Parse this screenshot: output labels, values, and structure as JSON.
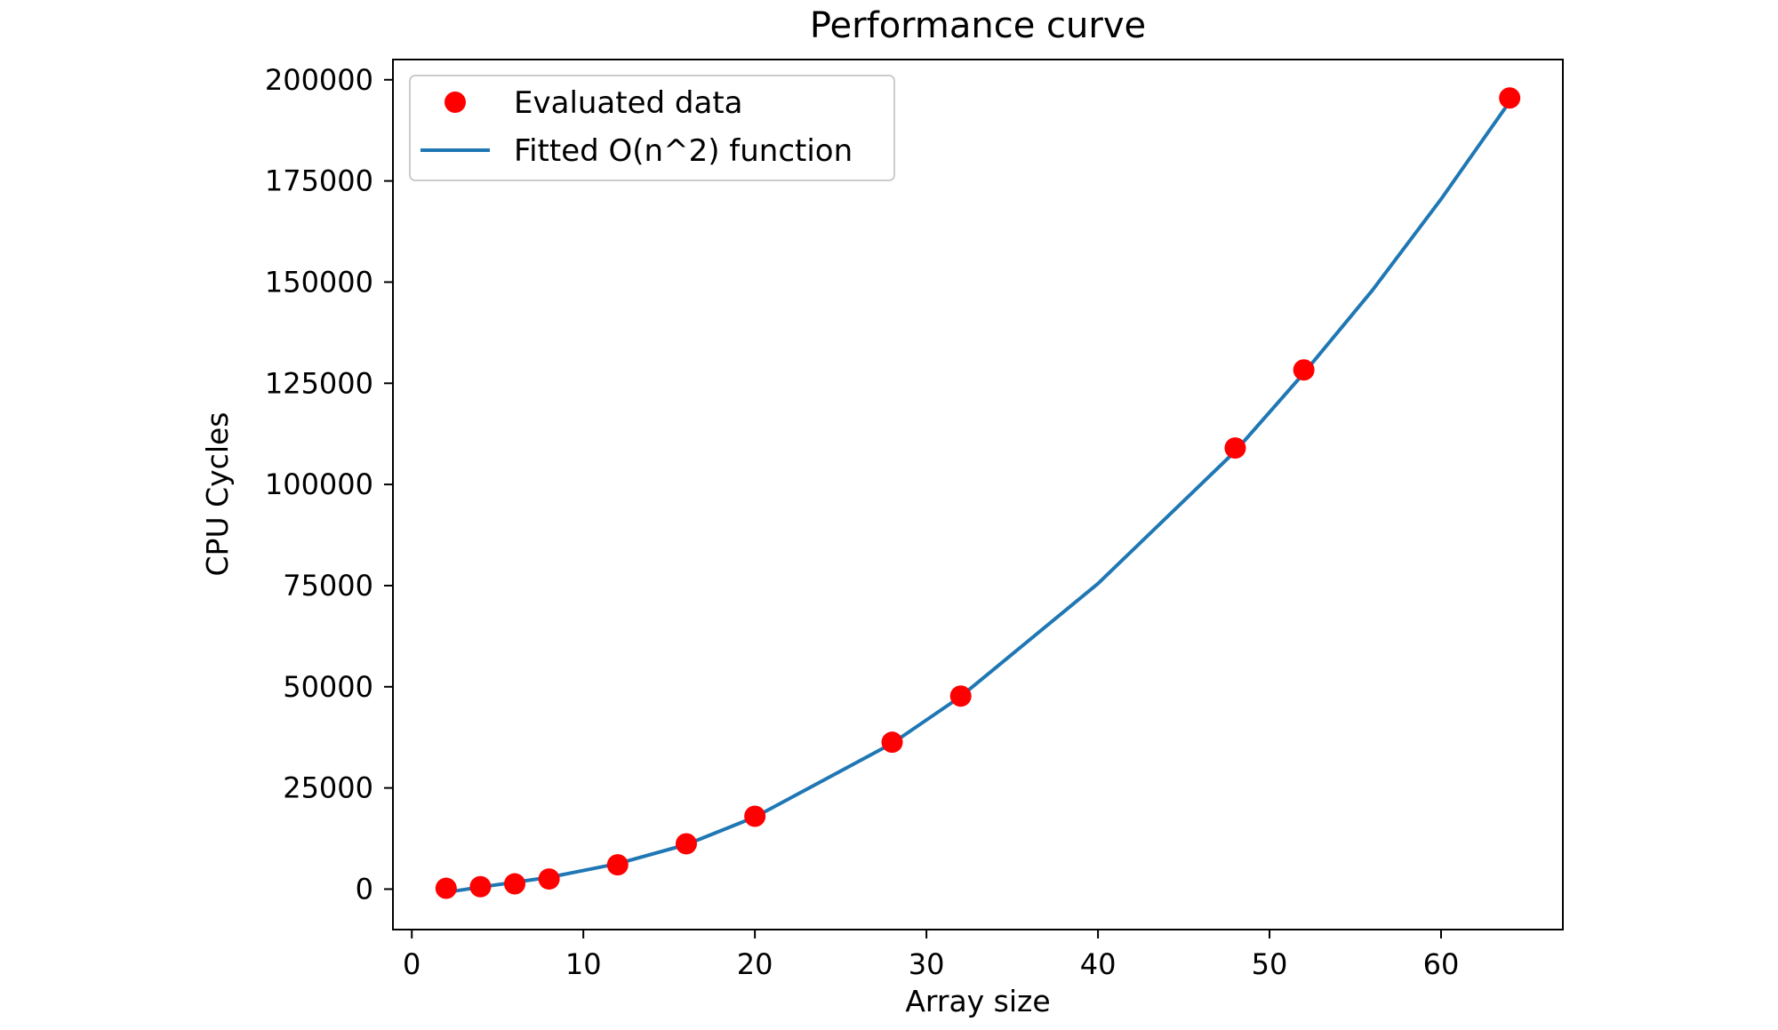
{
  "chart_data": {
    "type": "scatter",
    "title": "Performance curve",
    "xlabel": "Array size",
    "ylabel": "CPU Cycles",
    "xlim": [
      -1.1,
      67.1
    ],
    "ylim": [
      -10000,
      205000
    ],
    "x_ticks": [
      0,
      10,
      20,
      30,
      40,
      50,
      60
    ],
    "y_ticks": [
      0,
      25000,
      50000,
      75000,
      100000,
      125000,
      150000,
      175000,
      200000
    ],
    "legend_position": "top-left",
    "series": [
      {
        "name": "Evaluated data",
        "kind": "points",
        "color": "#ff0000",
        "x": [
          2,
          4,
          6,
          8,
          12,
          16,
          20,
          28,
          32,
          48,
          52,
          64
        ],
        "y": [
          200,
          600,
          1300,
          2500,
          6000,
          11200,
          18000,
          36300,
          47700,
          109000,
          128300,
          195500
        ]
      },
      {
        "name": "Fitted O(n^2) function",
        "kind": "line",
        "color": "#1f77b4",
        "x": [
          2,
          4,
          6,
          8,
          12,
          16,
          20,
          28,
          32,
          40,
          48,
          52,
          56,
          60,
          64
        ],
        "y": [
          -800,
          500,
          1700,
          2900,
          6300,
          11000,
          17800,
          36000,
          47600,
          75500,
          108200,
          127500,
          148000,
          170500,
          194600
        ]
      }
    ]
  }
}
